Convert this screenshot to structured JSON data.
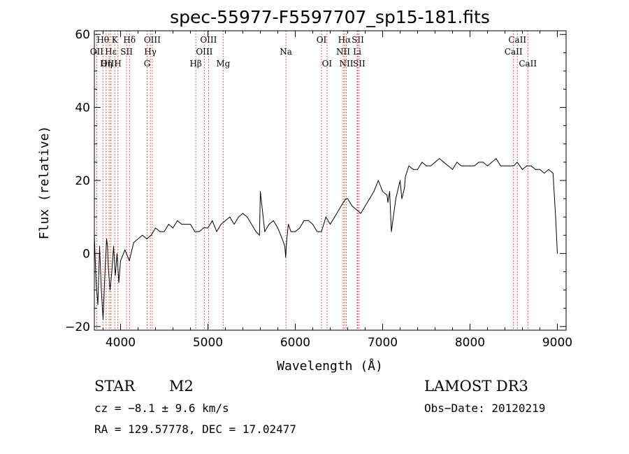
{
  "chart_data": {
    "type": "line",
    "title": "spec-55977-F5597707_sp15-181.fits",
    "xlabel": "Wavelength (Å)",
    "ylabel": "Flux (relative)",
    "xlim": [
      3700,
      9100
    ],
    "ylim": [
      -21,
      61
    ],
    "xticks": [
      4000,
      5000,
      6000,
      7000,
      8000,
      9000
    ],
    "yticks": [
      -20,
      0,
      20,
      40,
      60
    ],
    "grid": false,
    "legend": "none",
    "series": [
      {
        "x": [
          3700,
          3720,
          3740,
          3760,
          3780,
          3800,
          3820,
          3840,
          3850,
          3860,
          3880,
          3900,
          3920,
          3940,
          3960,
          3980,
          4000,
          4050,
          4100,
          4150,
          4200,
          4250,
          4300,
          4350,
          4400,
          4450,
          4500,
          4550,
          4600,
          4650,
          4700,
          4750,
          4800,
          4850,
          4900,
          4950,
          5000,
          5050,
          5100,
          5150,
          5200,
          5250,
          5300,
          5350,
          5400,
          5450,
          5500,
          5550,
          5590,
          5600,
          5650,
          5700,
          5750,
          5800,
          5850,
          5880,
          5890,
          5900,
          5920,
          5950,
          6000,
          6050,
          6100,
          6150,
          6200,
          6250,
          6300,
          6350,
          6400,
          6450,
          6500,
          6550,
          6580,
          6600,
          6650,
          6700,
          6750,
          6800,
          6850,
          6900,
          6950,
          7000,
          7050,
          7060,
          7080,
          7100,
          7150,
          7200,
          7220,
          7250,
          7260,
          7300,
          7350,
          7400,
          7450,
          7500,
          7550,
          7600,
          7650,
          7700,
          7750,
          7800,
          7850,
          7900,
          7950,
          8000,
          8050,
          8100,
          8150,
          8200,
          8250,
          8300,
          8350,
          8400,
          8450,
          8500,
          8540,
          8600,
          8650,
          8700,
          8750,
          8800,
          8850,
          8900,
          8950,
          8980,
          9000
        ],
        "y": [
          5,
          -8,
          -14,
          2,
          -10,
          -18,
          -6,
          4,
          2,
          -4,
          -10,
          -5,
          2,
          -6,
          0,
          -8,
          -2,
          1,
          -2,
          3,
          4,
          5,
          4,
          5,
          7,
          6,
          6,
          8,
          7,
          9,
          8,
          8,
          8,
          6,
          6,
          7,
          7,
          9,
          6,
          8,
          9,
          10,
          8,
          10,
          11,
          10,
          8,
          6,
          5,
          17,
          6,
          8,
          9,
          7,
          4,
          2,
          -1,
          3,
          8,
          6,
          6,
          7,
          9,
          9,
          8,
          6,
          6,
          10,
          8,
          10,
          12,
          14,
          15,
          15,
          13,
          12,
          11,
          13,
          15,
          17,
          20,
          17,
          16,
          14,
          17,
          6,
          15,
          20,
          15,
          18,
          21,
          24,
          23,
          23,
          25,
          24,
          24,
          25,
          26,
          25,
          24,
          23,
          25,
          24,
          24,
          24,
          24,
          25,
          25,
          24,
          25,
          26,
          24,
          24,
          24,
          24,
          25,
          23,
          24,
          24,
          23,
          23,
          22,
          23,
          22,
          10,
          0
        ]
      }
    ],
    "line_markers": [
      {
        "label": "Hθ",
        "wl": 3798,
        "row": 0
      },
      {
        "label": "OII",
        "wl": 3727,
        "row": 1
      },
      {
        "label": "OIII",
        "wl": 3869,
        "row": 2
      },
      {
        "label": "K",
        "wl": 3934,
        "row": 0
      },
      {
        "label": "Hε",
        "wl": 3889,
        "row": 1
      },
      {
        "label": "Hη",
        "wl": 3835,
        "row": 2
      },
      {
        "label": "SII",
        "wl": 4069,
        "row": 1
      },
      {
        "label": "H",
        "wl": 3969,
        "row": 2
      },
      {
        "label": "Hδ",
        "wl": 4102,
        "row": 0
      },
      {
        "label": "OIII",
        "wl": 4363,
        "row": 0
      },
      {
        "label": "Hγ",
        "wl": 4341,
        "row": 1
      },
      {
        "label": "G",
        "wl": 4304,
        "row": 2
      },
      {
        "label": "Hβ",
        "wl": 4861,
        "row": 2
      },
      {
        "label": "OIII",
        "wl": 5007,
        "row": 0
      },
      {
        "label": "OIII",
        "wl": 4959,
        "row": 1
      },
      {
        "label": "Mg",
        "wl": 5175,
        "row": 2
      },
      {
        "label": "Na",
        "wl": 5893,
        "row": 1
      },
      {
        "label": "OI",
        "wl": 6300,
        "row": 0
      },
      {
        "label": "OI",
        "wl": 6363,
        "row": 2
      },
      {
        "label": "Hα",
        "wl": 6563,
        "row": 0
      },
      {
        "label": "NII",
        "wl": 6548,
        "row": 1
      },
      {
        "label": "NII",
        "wl": 6584,
        "row": 2
      },
      {
        "label": "SII",
        "wl": 6716,
        "row": 0
      },
      {
        "label": "Li",
        "wl": 6708,
        "row": 1
      },
      {
        "label": "SII",
        "wl": 6731,
        "row": 2
      },
      {
        "label": "CaII",
        "wl": 8542,
        "row": 0
      },
      {
        "label": "CaII",
        "wl": 8498,
        "row": 1
      },
      {
        "label": "CaII",
        "wl": 8662,
        "row": 2
      }
    ]
  },
  "info": {
    "class": "STAR",
    "subclass": "M2",
    "survey": "LAMOST DR3",
    "cz": "cz = −8.1 ± 9.6 km/s",
    "obs_date": "Obs−Date: 20120219",
    "radec": "RA = 129.57778, DEC =  17.02477"
  },
  "colors": {
    "axis": "#000000",
    "spectrum": "#000000",
    "line_marker": "#c0392b"
  }
}
